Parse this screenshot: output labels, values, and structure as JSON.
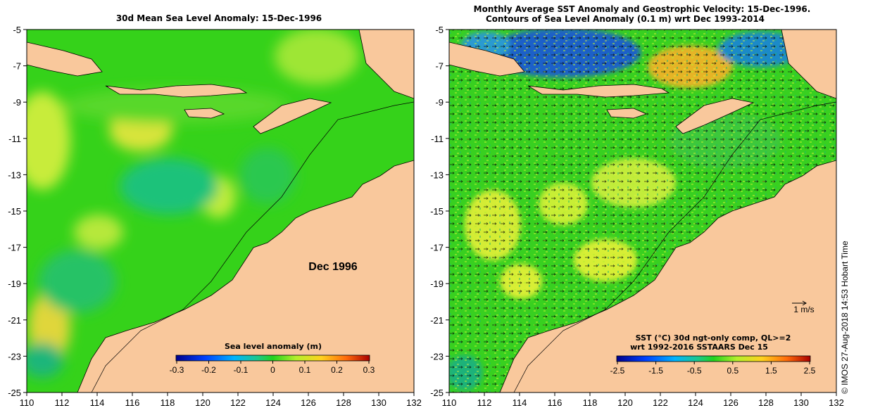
{
  "left_map": {
    "title": "30d Mean Sea Level Anomaly: 15-Dec-1996",
    "date_label": "Dec 1996",
    "colorbar": {
      "title": "Sea level anomaly (m)",
      "ticks": [
        "-0.3",
        "-0.2",
        "-0.1",
        "0",
        "0.1",
        "0.2",
        "0.3"
      ]
    }
  },
  "right_map": {
    "title_line1": "Monthly Average SST Anomaly  and Geostrophic Velocity: 15-Dec-1996.",
    "title_line2": "Contours of Sea Level Anomaly (0.1 m) wrt Dec 1993-2014",
    "scale_arrow_label": "1 m/s",
    "colorbar": {
      "title_line1": "SST (°C) 30d ngt-only comp, QL>=2",
      "title_line2": "wrt 1992-2016 SSTAARS Dec 15",
      "ticks": [
        "-2.5",
        "-1.5",
        "-0.5",
        "0.5",
        "1.5",
        "2.5"
      ]
    }
  },
  "axes": {
    "x_ticks": [
      "110",
      "112",
      "114",
      "116",
      "118",
      "120",
      "122",
      "124",
      "126",
      "128",
      "130",
      "132"
    ],
    "y_ticks": [
      "-5",
      "-7",
      "-9",
      "-11",
      "-13",
      "-15",
      "-17",
      "-19",
      "-21",
      "-23",
      "-25"
    ]
  },
  "copyright": "© IMOS 27-Aug-2018 14:53 Hobart Time",
  "colors": {
    "land": "#f9c89c",
    "ocean_base": "#35d21a",
    "ocean_yellow": "#c8f03c",
    "ocean_teal": "#1cba6a"
  }
}
